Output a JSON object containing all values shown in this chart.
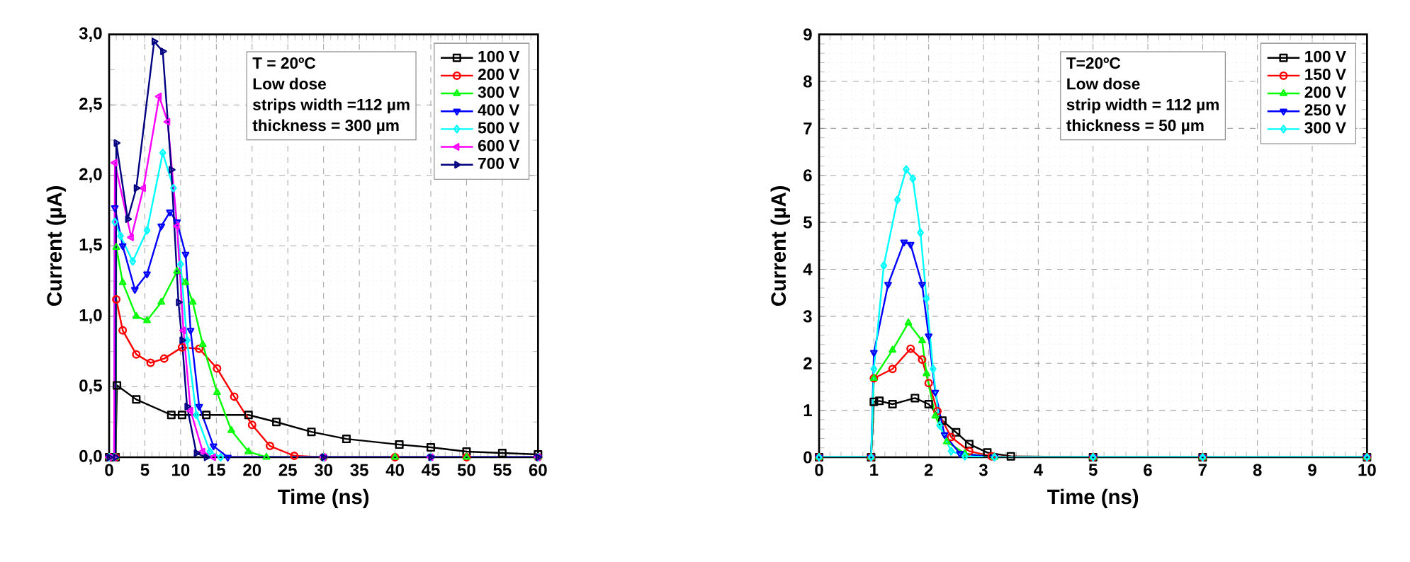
{
  "chart_data": [
    {
      "type": "line",
      "xlabel": "Time (ns)",
      "ylabel": "Current (µA)",
      "xlim": [
        0,
        60
      ],
      "xticks": [
        0,
        5,
        10,
        15,
        20,
        25,
        30,
        35,
        40,
        45,
        50,
        55,
        60
      ],
      "ylim": [
        0,
        3.0
      ],
      "yticks": [
        {
          "value": 0,
          "label": "0,0"
        },
        {
          "value": 0.5,
          "label": "0,5"
        },
        {
          "value": 1.0,
          "label": "1,0"
        },
        {
          "value": 1.5,
          "label": "1,5"
        },
        {
          "value": 2.0,
          "label": "2,0"
        },
        {
          "value": 2.5,
          "label": "2,5"
        },
        {
          "value": 3.0,
          "label": "3,0"
        }
      ],
      "grid": true,
      "legend": "top right",
      "line_style": "solid",
      "annotations": [
        "T = 20ºC",
        "Low dose",
        "strips width =112 µm",
        "thickness = 300 µm"
      ],
      "series": [
        {
          "name": "100 V",
          "color": "#000000",
          "marker": "square",
          "x": [
            0,
            0.9,
            1.1,
            3.8,
            8.7,
            10.2,
            13.6,
            19.5,
            23.4,
            28.3,
            33.2,
            40.6,
            45,
            50,
            55,
            60
          ],
          "values": [
            0,
            0,
            0.51,
            0.41,
            0.3,
            0.3,
            0.3,
            0.3,
            0.25,
            0.18,
            0.13,
            0.09,
            0.07,
            0.04,
            0.03,
            0.02
          ]
        },
        {
          "name": "200 V",
          "color": "#ff0000",
          "marker": "circle",
          "x": [
            0,
            0.9,
            1.0,
            1.9,
            3.8,
            5.8,
            7.7,
            10.2,
            12.6,
            15.1,
            17.5,
            20,
            22.5,
            25.9,
            30,
            40,
            50,
            60
          ],
          "values": [
            0,
            0,
            1.12,
            0.9,
            0.73,
            0.67,
            0.7,
            0.78,
            0.77,
            0.63,
            0.43,
            0.23,
            0.08,
            0.01,
            0,
            0,
            0,
            0
          ]
        },
        {
          "name": "300 V",
          "color": "#00ff00",
          "marker": "triangle",
          "x": [
            0,
            0.9,
            1.0,
            1.9,
            3.8,
            5.3,
            7.3,
            9.5,
            10.7,
            11.7,
            13.1,
            15.1,
            17.1,
            19.5,
            22,
            30,
            40,
            50,
            60
          ],
          "values": [
            0,
            0,
            1.49,
            1.24,
            1.0,
            0.97,
            1.1,
            1.32,
            1.24,
            1.1,
            0.8,
            0.46,
            0.19,
            0.04,
            0,
            0,
            0,
            0,
            0
          ]
        },
        {
          "name": "400 V",
          "color": "#0000ff",
          "marker": "triangle",
          "x": [
            0,
            0.7,
            0.8,
            1.9,
            3.6,
            5.3,
            7.3,
            8.5,
            9.5,
            10.7,
            11.4,
            12.6,
            14.6,
            16.6,
            30,
            45,
            60
          ],
          "values": [
            0,
            0,
            1.77,
            1.5,
            1.19,
            1.3,
            1.64,
            1.74,
            1.67,
            1.44,
            0.9,
            0.36,
            0.08,
            0,
            0,
            0,
            0
          ]
        },
        {
          "name": "500 V",
          "color": "#00ffff",
          "marker": "diamond",
          "x": [
            0,
            0.7,
            0.8,
            1.6,
            3.3,
            5.3,
            7.5,
            9.0,
            10.0,
            10.9,
            12.2,
            14.1,
            15.6,
            30,
            45,
            60
          ],
          "values": [
            0,
            0,
            1.67,
            1.57,
            1.39,
            1.61,
            2.16,
            1.91,
            1.37,
            0.83,
            0.3,
            0.04,
            0,
            0,
            0,
            0
          ]
        },
        {
          "name": "600 V",
          "color": "#ff00ff",
          "marker": "triangle",
          "x": [
            0,
            0.7,
            0.8,
            3.1,
            4.8,
            7.0,
            8.2,
            9.5,
            10.4,
            11.4,
            13.1,
            14.6,
            30,
            45,
            60
          ],
          "values": [
            0,
            0,
            2.09,
            1.56,
            1.91,
            2.56,
            2.38,
            1.64,
            0.9,
            0.33,
            0.04,
            0,
            0,
            0,
            0
          ]
        },
        {
          "name": "700 V",
          "color": "#000080",
          "marker": "triangle",
          "x": [
            0,
            0.9,
            1.0,
            2.6,
            3.8,
            6.3,
            7.5,
            8.7,
            9.7,
            10.2,
            10.9,
            12.2,
            13.6,
            30,
            45,
            60
          ],
          "values": [
            0,
            0,
            2.23,
            1.69,
            1.91,
            2.95,
            2.88,
            2.04,
            1.1,
            0.83,
            0.36,
            0.03,
            0,
            0,
            0,
            0
          ]
        }
      ]
    },
    {
      "type": "line",
      "xlabel": "Time (ns)",
      "ylabel": "Current (µA)",
      "xlim": [
        0,
        10
      ],
      "xticks": [
        0,
        1,
        2,
        3,
        4,
        5,
        6,
        7,
        8,
        9,
        10
      ],
      "ylim": [
        0,
        9
      ],
      "yticks": [
        0,
        1,
        2,
        3,
        4,
        5,
        6,
        7,
        8,
        9
      ],
      "grid": true,
      "legend": "top right",
      "line_style": "solid",
      "annotations": [
        "T=20ºC",
        "Low dose",
        "strip width = 112 µm",
        "thickness = 50 µm"
      ],
      "series": [
        {
          "name": "100 V",
          "color": "#000000",
          "marker": "square",
          "x": [
            0,
            0.95,
            1.0,
            1.1,
            1.34,
            1.75,
            2.0,
            2.25,
            2.5,
            2.74,
            3.07,
            3.5,
            5,
            7,
            10
          ],
          "values": [
            0,
            0,
            1.18,
            1.2,
            1.13,
            1.26,
            1.13,
            0.78,
            0.53,
            0.28,
            0.1,
            0.02,
            0,
            0,
            0
          ]
        },
        {
          "name": "150 V",
          "color": "#ff0000",
          "marker": "circle",
          "x": [
            0,
            0.95,
            1.0,
            1.34,
            1.67,
            1.88,
            2.0,
            2.16,
            2.41,
            2.74,
            3.15,
            5,
            7,
            10
          ],
          "values": [
            0,
            0,
            1.68,
            1.88,
            2.31,
            2.08,
            1.58,
            0.98,
            0.43,
            0.13,
            0.02,
            0,
            0,
            0
          ]
        },
        {
          "name": "200 V",
          "color": "#00ff00",
          "marker": "triangle",
          "x": [
            0,
            0.95,
            1.0,
            1.34,
            1.63,
            1.88,
            1.96,
            2.12,
            2.33,
            2.66,
            3.2,
            5,
            7,
            10
          ],
          "values": [
            0,
            0,
            1.68,
            2.28,
            2.86,
            2.48,
            1.78,
            0.88,
            0.33,
            0.08,
            0,
            0,
            0,
            0
          ]
        },
        {
          "name": "250 V",
          "color": "#0000ff",
          "marker": "triangle",
          "x": [
            0,
            0.95,
            1.0,
            1.26,
            1.55,
            1.67,
            1.88,
            2.0,
            2.12,
            2.29,
            2.57,
            3.2,
            5,
            7,
            10
          ],
          "values": [
            0,
            0,
            2.23,
            3.68,
            4.58,
            4.53,
            3.68,
            2.58,
            1.38,
            0.48,
            0.08,
            0,
            0,
            0,
            0
          ]
        },
        {
          "name": "300 V",
          "color": "#00ffff",
          "marker": "diamond",
          "x": [
            0,
            0.95,
            1.0,
            1.18,
            1.43,
            1.59,
            1.71,
            1.85,
            1.96,
            2.08,
            2.2,
            2.41,
            2.66,
            3.2,
            5,
            7,
            10
          ],
          "values": [
            0,
            0,
            1.88,
            4.08,
            5.48,
            6.13,
            5.93,
            4.78,
            3.38,
            1.88,
            0.68,
            0.13,
            0.02,
            0,
            0,
            0,
            0
          ]
        }
      ]
    }
  ]
}
